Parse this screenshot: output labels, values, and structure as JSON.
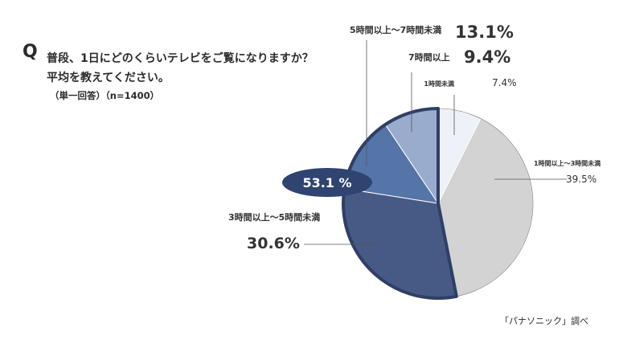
{
  "question": {
    "mark": "Q",
    "line1": "普段、1日にどのくらいテレビをご覧になりますか？",
    "line2": "平均を教えてください。",
    "note": "（単一回答）（n=1400）"
  },
  "source": "「パナソニック」調べ",
  "highlight": {
    "label": "53.1 %"
  },
  "colors": {
    "under1": "#eef1f8",
    "h1to3": "#d3d3d3",
    "h3to5": "#475a85",
    "h5to7": "#5574a8",
    "h7plus": "#9aaccd",
    "highlight_fill": "#2f4470",
    "outline": "#2f3f66"
  },
  "chart_data": {
    "type": "pie",
    "n": 1400,
    "slices": [
      {
        "label": "1時間未満",
        "value": 7.4,
        "display": "7.4%"
      },
      {
        "label": "1時間以上～3時間未満",
        "value": 39.5,
        "display": "39.5%"
      },
      {
        "label": "3時間以上～5時間未満",
        "value": 30.6,
        "display": "30.6%"
      },
      {
        "label": "5時間以上～7時間未満",
        "value": 13.1,
        "display": "13.1%"
      },
      {
        "label": "7時間以上",
        "value": 9.4,
        "display": "9.4%"
      }
    ],
    "highlighted_slices": [
      "3時間以上～5時間未満",
      "5時間以上～7時間未満",
      "7時間以上"
    ],
    "highlighted_total": 53.1
  }
}
